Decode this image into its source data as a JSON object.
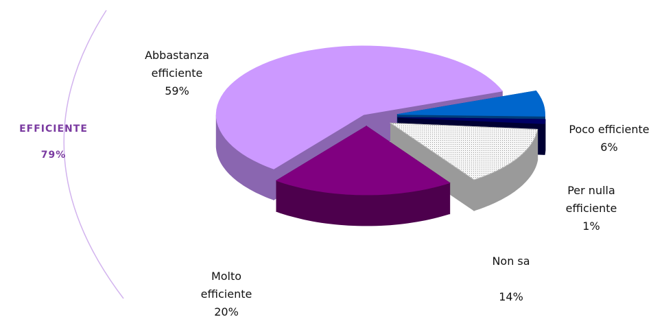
{
  "chart_data": {
    "type": "pie3d",
    "categories": [
      "Poco efficiente",
      "Per nulla efficiente",
      "Non sa",
      "Molto efficiente",
      "Abbastanza efficiente"
    ],
    "values": [
      6,
      1,
      14,
      20,
      59
    ],
    "value_labels": [
      "6%",
      "1%",
      "14%",
      "20%",
      "59%"
    ],
    "colors": [
      "#0066cc",
      "#000066",
      "#f2f2f2",
      "#800080",
      "#cc99ff"
    ],
    "side_colors": [
      "#003d7a",
      "#000033",
      "#9a9a9a",
      "#4d004d",
      "#8a66b0"
    ],
    "annotation": {
      "text": "EFFICIENTE",
      "value": 79,
      "value_label": "79%"
    }
  }
}
